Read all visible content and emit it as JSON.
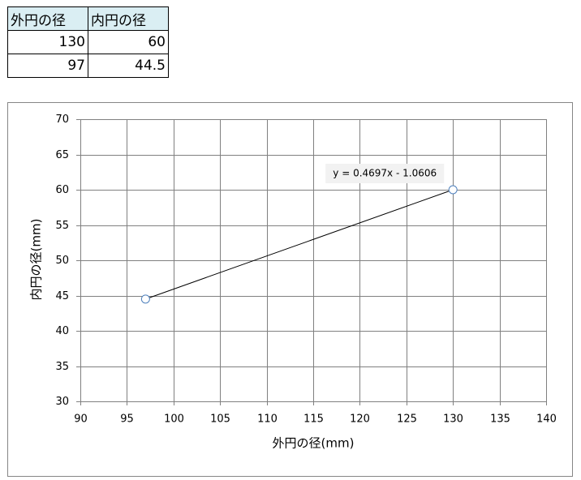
{
  "table": {
    "header": [
      "外円の径",
      "内円の径"
    ],
    "rows": [
      [
        "130",
        "60"
      ],
      [
        "97",
        "44.5"
      ]
    ]
  },
  "chart_data": {
    "type": "scatter",
    "x": [
      97,
      130
    ],
    "values": [
      44.5,
      60
    ],
    "marker_color": "#4f81bd",
    "line_color": "#000000",
    "connect": true,
    "xlabel": "外円の径(mm)",
    "ylabel": "内円の径(mm)",
    "annotation": "y = 0.4697x - 1.0606",
    "xlim": [
      90,
      140
    ],
    "xticks": [
      90,
      95,
      100,
      105,
      110,
      115,
      120,
      125,
      130,
      135,
      140
    ],
    "ylim": [
      30,
      70
    ],
    "yticks": [
      30,
      35,
      40,
      45,
      50,
      55,
      60,
      65,
      70
    ],
    "grid": true
  }
}
